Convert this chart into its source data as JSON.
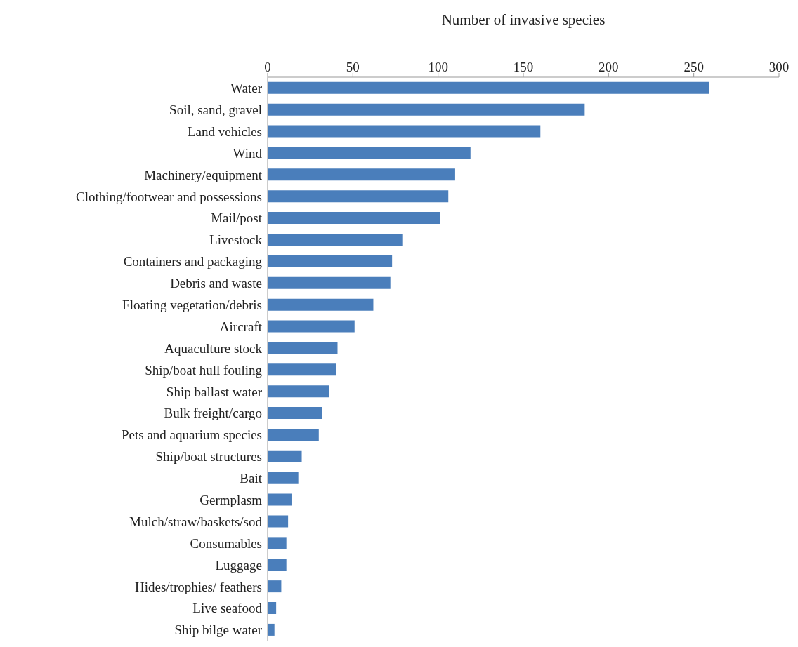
{
  "chart_data": {
    "type": "bar",
    "orientation": "horizontal",
    "xlabel": "Number of invasive species",
    "categories": [
      "Water",
      "Soil, sand, gravel",
      "Land vehicles",
      "Wind",
      "Machinery/equipment",
      "Clothing/footwear and possessions",
      "Mail/post",
      "Livestock",
      "Containers and packaging",
      "Debris and waste",
      "Floating vegetation/debris",
      "Aircraft",
      "Aquaculture stock",
      "Ship/boat hull fouling",
      "Ship ballast water",
      "Bulk freight/cargo",
      "Pets and aquarium species",
      "Ship/boat structures",
      "Bait",
      "Germplasm",
      "Mulch/straw/baskets/sod",
      "Consumables",
      "Luggage",
      "Hides/trophies/ feathers",
      "Live seafood",
      "Ship bilge water"
    ],
    "values": [
      259,
      186,
      160,
      119,
      110,
      106,
      101,
      79,
      73,
      72,
      62,
      51,
      41,
      40,
      36,
      32,
      30,
      20,
      18,
      14,
      12,
      11,
      11,
      8,
      5,
      4
    ],
    "color": "#4a7ebb",
    "xlim": [
      0,
      300
    ],
    "xticks": [
      0,
      50,
      100,
      150,
      200,
      250,
      300
    ],
    "grid": false,
    "legend": false
  }
}
